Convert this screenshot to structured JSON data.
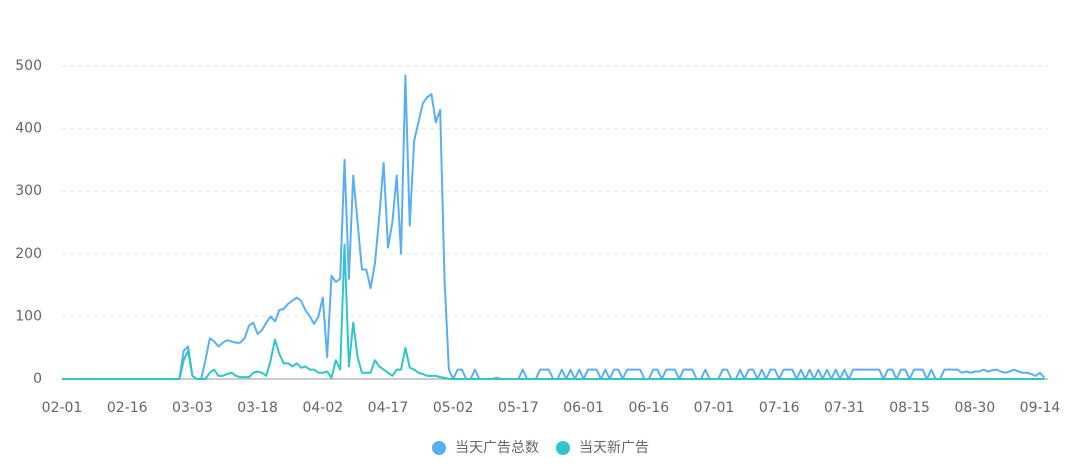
{
  "chart_data": {
    "type": "line",
    "categories": [
      "02-01",
      null,
      null,
      null,
      null,
      null,
      null,
      null,
      null,
      null,
      null,
      null,
      null,
      null,
      null,
      "02-16",
      null,
      null,
      null,
      null,
      null,
      null,
      null,
      null,
      null,
      null,
      null,
      null,
      null,
      null,
      "03-03",
      null,
      null,
      null,
      null,
      null,
      null,
      null,
      null,
      null,
      null,
      null,
      null,
      null,
      null,
      "03-18",
      null,
      null,
      null,
      null,
      null,
      null,
      null,
      null,
      null,
      null,
      null,
      null,
      null,
      null,
      "04-02",
      null,
      null,
      null,
      null,
      null,
      null,
      null,
      null,
      null,
      null,
      null,
      null,
      null,
      null,
      "04-17",
      null,
      null,
      null,
      null,
      null,
      null,
      null,
      null,
      null,
      null,
      null,
      null,
      null,
      null,
      "05-02",
      null,
      null,
      null,
      null,
      null,
      null,
      null,
      null,
      null,
      null,
      null,
      null,
      null,
      null,
      "05-17",
      null,
      null,
      null,
      null,
      null,
      null,
      null,
      null,
      null,
      null,
      null,
      null,
      null,
      null,
      "06-01",
      null,
      null,
      null,
      null,
      null,
      null,
      null,
      null,
      null,
      null,
      null,
      null,
      null,
      null,
      "06-16",
      null,
      null,
      null,
      null,
      null,
      null,
      null,
      null,
      null,
      null,
      null,
      null,
      null,
      null,
      "07-01",
      null,
      null,
      null,
      null,
      null,
      null,
      null,
      null,
      null,
      null,
      null,
      null,
      null,
      null,
      "07-16",
      null,
      null,
      null,
      null,
      null,
      null,
      null,
      null,
      null,
      null,
      null,
      null,
      null,
      null,
      "07-31",
      null,
      null,
      null,
      null,
      null,
      null,
      null,
      null,
      null,
      null,
      null,
      null,
      null,
      null,
      "08-15",
      null,
      null,
      null,
      null,
      null,
      null,
      null,
      null,
      null,
      null,
      null,
      null,
      null,
      null,
      "08-30",
      null,
      null,
      null,
      null,
      null,
      null,
      null,
      null,
      null,
      null,
      null,
      null,
      null,
      null,
      "09-14",
      null
    ],
    "series": [
      {
        "name": "当天广告总数",
        "color": "#5aaef3",
        "values": [
          0,
          0,
          0,
          0,
          0,
          0,
          0,
          0,
          0,
          0,
          0,
          0,
          0,
          0,
          0,
          0,
          0,
          0,
          0,
          0,
          0,
          0,
          0,
          0,
          0,
          0,
          0,
          0,
          45,
          52,
          5,
          0,
          0,
          30,
          65,
          60,
          52,
          58,
          62,
          60,
          58,
          58,
          65,
          85,
          90,
          72,
          78,
          90,
          100,
          92,
          110,
          112,
          120,
          125,
          130,
          125,
          110,
          100,
          88,
          100,
          130,
          35,
          165,
          155,
          160,
          350,
          160,
          325,
          250,
          175,
          175,
          145,
          185,
          260,
          345,
          210,
          250,
          325,
          200,
          485,
          245,
          380,
          410,
          440,
          450,
          455,
          410,
          430,
          160,
          15,
          0,
          15,
          15,
          0,
          0,
          15,
          0,
          0,
          0,
          0,
          2,
          0,
          0,
          0,
          0,
          0,
          15,
          0,
          0,
          0,
          15,
          15,
          15,
          0,
          0,
          15,
          0,
          15,
          0,
          15,
          0,
          15,
          15,
          15,
          0,
          15,
          0,
          15,
          15,
          0,
          15,
          15,
          15,
          15,
          0,
          0,
          15,
          15,
          0,
          15,
          15,
          15,
          0,
          15,
          15,
          15,
          0,
          0,
          15,
          0,
          0,
          0,
          15,
          15,
          0,
          0,
          15,
          0,
          15,
          15,
          0,
          15,
          0,
          15,
          15,
          0,
          15,
          15,
          15,
          0,
          15,
          0,
          15,
          0,
          15,
          0,
          15,
          0,
          15,
          0,
          15,
          0,
          15,
          15,
          15,
          15,
          15,
          15,
          15,
          0,
          15,
          15,
          0,
          15,
          15,
          0,
          15,
          15,
          15,
          0,
          15,
          0,
          0,
          15,
          15,
          15,
          15,
          10,
          12,
          10,
          12,
          12,
          15,
          12,
          14,
          15,
          12,
          10,
          12,
          15,
          12,
          10,
          10,
          8,
          5,
          10,
          2
        ]
      },
      {
        "name": "当天新广告",
        "color": "#2fc6c8",
        "values": [
          0,
          0,
          0,
          0,
          0,
          0,
          0,
          0,
          0,
          0,
          0,
          0,
          0,
          0,
          0,
          0,
          0,
          0,
          0,
          0,
          0,
          0,
          0,
          0,
          0,
          0,
          0,
          0,
          30,
          45,
          5,
          0,
          0,
          0,
          10,
          15,
          5,
          5,
          8,
          10,
          5,
          3,
          3,
          3,
          10,
          12,
          10,
          5,
          30,
          63,
          40,
          25,
          25,
          20,
          25,
          18,
          20,
          15,
          15,
          10,
          10,
          12,
          2,
          30,
          15,
          215,
          20,
          90,
          35,
          10,
          10,
          10,
          30,
          20,
          15,
          10,
          5,
          15,
          15,
          50,
          18,
          15,
          10,
          8,
          5,
          5,
          5,
          3,
          2,
          0,
          0,
          0,
          0,
          0,
          0,
          0,
          0,
          0,
          0,
          0,
          0,
          0,
          0,
          0,
          0,
          0,
          0,
          0,
          0,
          0,
          0,
          0,
          0,
          0,
          0,
          0,
          0,
          0,
          0,
          0,
          0,
          0,
          0,
          0,
          0,
          0,
          0,
          0,
          0,
          0,
          0,
          0,
          0,
          0,
          0,
          0,
          0,
          0,
          0,
          0,
          0,
          0,
          0,
          0,
          0,
          0,
          0,
          0,
          0,
          0,
          0,
          0,
          0,
          0,
          0,
          0,
          0,
          0,
          0,
          0,
          0,
          0,
          0,
          0,
          0,
          0,
          0,
          0,
          0,
          0,
          0,
          0,
          0,
          0,
          0,
          0,
          0,
          0,
          0,
          0,
          0,
          0,
          0,
          0,
          0,
          0,
          0,
          0,
          0,
          0,
          0,
          0,
          0,
          0,
          0,
          0,
          0,
          0,
          0,
          0,
          0,
          0,
          0,
          0,
          0,
          0,
          0,
          0,
          0,
          0,
          0,
          0,
          0,
          0,
          0,
          0,
          0,
          0,
          0,
          0,
          0,
          0,
          0,
          0,
          0,
          0,
          0
        ]
      }
    ],
    "ylim": [
      0,
      500
    ],
    "yticks": [
      0,
      100,
      200,
      300,
      400,
      500
    ],
    "grid": true,
    "legend": "bottom"
  }
}
